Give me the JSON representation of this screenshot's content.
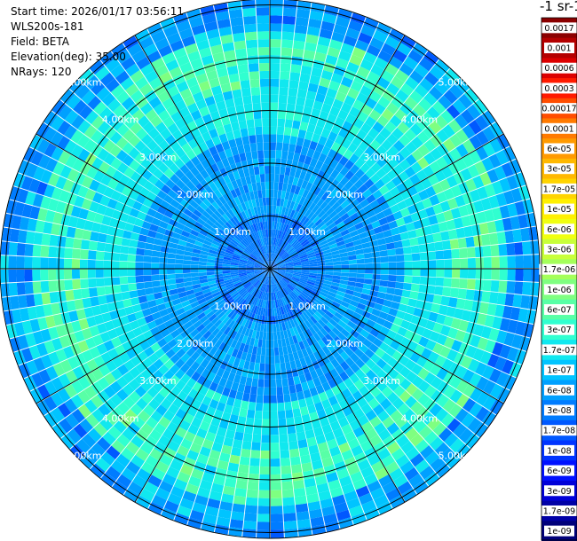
{
  "info": {
    "start_time": "Start time: 2026/01/17 03:56:11",
    "instrument": "WLS200s-181",
    "field": "Field: BETA",
    "elevation": "Elevation(deg): 35.00",
    "nrays": "NRays: 120"
  },
  "unit_label": "-1 sr-1",
  "chart_data": {
    "type": "heatmap",
    "projection": "polar (PPI scan)",
    "field": "BETA",
    "n_rays": 120,
    "elevation_deg": 35.0,
    "range_rings_km": [
      1,
      2,
      3,
      4,
      5
    ],
    "ring_labels": [
      "1.00km",
      "2.00km",
      "3.00km",
      "4.00km",
      "5.00km"
    ],
    "max_range_km": 5.3,
    "spoke_angles_deg": [
      0,
      30,
      60,
      90,
      120,
      150,
      180,
      210,
      240,
      270,
      300,
      330
    ],
    "dominant_value_by_range": [
      {
        "range_km": [
          0.0,
          1.0
        ],
        "value": "3e-08"
      },
      {
        "range_km": [
          1.0,
          2.5
        ],
        "value": "6e-08"
      },
      {
        "range_km": [
          2.5,
          3.5
        ],
        "value": "1.7e-07"
      },
      {
        "range_km": [
          3.5,
          4.5
        ],
        "value": "1.7e-07 to 6e-07"
      },
      {
        "range_km": [
          4.5,
          5.3
        ],
        "value": "1e-07 to 3e-08"
      }
    ],
    "colorbar": {
      "scale": "log",
      "ticks": [
        "0.0017",
        "0.001",
        "0.0006",
        "0.0003",
        "0.00017",
        "0.0001",
        "6e-05",
        "3e-05",
        "1.7e-05",
        "1e-05",
        "6e-06",
        "3e-06",
        "1.7e-06",
        "1e-06",
        "6e-07",
        "3e-07",
        "1.7e-07",
        "1e-07",
        "6e-08",
        "3e-08",
        "1.7e-08",
        "1e-08",
        "6e-09",
        "3e-09",
        "1.7e-09",
        "1e-09"
      ],
      "colors": [
        "#8b0000",
        "#b40000",
        "#dc0000",
        "#ff1a00",
        "#ff4d00",
        "#ff7a00",
        "#ff9a00",
        "#ffb800",
        "#ffd400",
        "#fff000",
        "#f0ff10",
        "#c8ff3a",
        "#a4ff5a",
        "#7fff80",
        "#58ffa6",
        "#30ffd0",
        "#10e8ef",
        "#00c4ff",
        "#00a0ff",
        "#007cff",
        "#0058ff",
        "#0034ff",
        "#0010ff",
        "#0000d8",
        "#0000a6",
        "#00007a"
      ]
    }
  }
}
